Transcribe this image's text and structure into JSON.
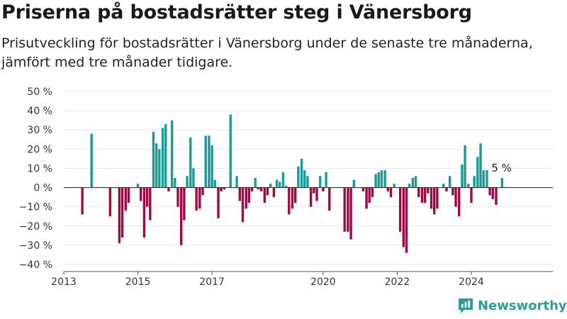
{
  "title": "Priserna på bostadsrätter steg i Vänersborg",
  "subtitle": "Prisutveckling för bostadsrätter i Vänersborg under de senaste tre månaderna, jämfört med tre månader tidigare.",
  "brand": {
    "name": "Newsworthy",
    "icon": "newsworthy-logo-icon"
  },
  "colors": {
    "positive": "#1a9c96",
    "negative": "#9e0a46",
    "grid": "#e6e6e6",
    "zero_line": "#333333",
    "text": "#333333"
  },
  "chart_data": {
    "type": "bar",
    "y_unit": "%",
    "ylim": [
      -40,
      50
    ],
    "yticks": [
      -40,
      -30,
      -20,
      -10,
      0,
      10,
      20,
      30,
      40,
      50
    ],
    "ytick_labels": [
      "−40 %",
      "−30 %",
      "−20 %",
      "−10 %",
      "0 %",
      "10 %",
      "20 %",
      "30 %",
      "40 %",
      "50 %"
    ],
    "xlim": [
      2013.0,
      2026.2
    ],
    "xticks": [
      2013,
      2015,
      2017,
      2020,
      2022,
      2024
    ],
    "xtick_labels": [
      "2013",
      "2015",
      "2017",
      "2020",
      "2022",
      "2024"
    ],
    "grid": true,
    "annotation": {
      "text": "5 %",
      "x": 2024.83,
      "y": 5
    },
    "points": [
      [
        2013.5,
        -14
      ],
      [
        2013.75,
        28
      ],
      [
        2014.25,
        -15
      ],
      [
        2014.5,
        -29
      ],
      [
        2014.58,
        -26
      ],
      [
        2014.67,
        -12
      ],
      [
        2014.75,
        -8
      ],
      [
        2015.0,
        2
      ],
      [
        2015.08,
        -7
      ],
      [
        2015.17,
        -26
      ],
      [
        2015.25,
        -10
      ],
      [
        2015.33,
        -17
      ],
      [
        2015.42,
        29
      ],
      [
        2015.5,
        23
      ],
      [
        2015.58,
        20
      ],
      [
        2015.67,
        31
      ],
      [
        2015.75,
        33
      ],
      [
        2015.83,
        -2
      ],
      [
        2015.92,
        35
      ],
      [
        2016.0,
        5
      ],
      [
        2016.08,
        -10
      ],
      [
        2016.17,
        -30
      ],
      [
        2016.25,
        -17
      ],
      [
        2016.33,
        6
      ],
      [
        2016.42,
        26
      ],
      [
        2016.5,
        10
      ],
      [
        2016.58,
        -12
      ],
      [
        2016.67,
        -11
      ],
      [
        2016.75,
        -4
      ],
      [
        2016.83,
        27
      ],
      [
        2016.92,
        27
      ],
      [
        2017.0,
        22
      ],
      [
        2017.08,
        4
      ],
      [
        2017.17,
        -16
      ],
      [
        2017.25,
        -2
      ],
      [
        2017.33,
        -1
      ],
      [
        2017.5,
        38
      ],
      [
        2017.58,
        0
      ],
      [
        2017.67,
        6
      ],
      [
        2017.75,
        -7
      ],
      [
        2017.83,
        -18
      ],
      [
        2017.92,
        -11
      ],
      [
        2018.0,
        -8
      ],
      [
        2018.08,
        -2
      ],
      [
        2018.17,
        5
      ],
      [
        2018.25,
        -1
      ],
      [
        2018.33,
        -2
      ],
      [
        2018.42,
        -8
      ],
      [
        2018.5,
        -4
      ],
      [
        2018.58,
        2
      ],
      [
        2018.67,
        -5
      ],
      [
        2018.75,
        4
      ],
      [
        2018.83,
        3
      ],
      [
        2018.92,
        8
      ],
      [
        2019.0,
        1
      ],
      [
        2019.08,
        -14
      ],
      [
        2019.17,
        -11
      ],
      [
        2019.25,
        -8
      ],
      [
        2019.33,
        11
      ],
      [
        2019.42,
        15
      ],
      [
        2019.5,
        9
      ],
      [
        2019.58,
        6
      ],
      [
        2019.67,
        -10
      ],
      [
        2019.75,
        -3
      ],
      [
        2019.83,
        -7
      ],
      [
        2019.92,
        6
      ],
      [
        2020.0,
        -2
      ],
      [
        2020.08,
        8
      ],
      [
        2020.17,
        -12
      ],
      [
        2020.58,
        -23
      ],
      [
        2020.67,
        -23
      ],
      [
        2020.75,
        -27
      ],
      [
        2020.83,
        4
      ],
      [
        2021.08,
        -2
      ],
      [
        2021.17,
        -11
      ],
      [
        2021.25,
        -8
      ],
      [
        2021.33,
        -5
      ],
      [
        2021.42,
        7
      ],
      [
        2021.5,
        8
      ],
      [
        2021.58,
        9
      ],
      [
        2021.67,
        9
      ],
      [
        2021.75,
        -2
      ],
      [
        2021.83,
        -5
      ],
      [
        2021.92,
        2
      ],
      [
        2022.08,
        -23
      ],
      [
        2022.17,
        -31
      ],
      [
        2022.25,
        -34
      ],
      [
        2022.33,
        2
      ],
      [
        2022.42,
        5
      ],
      [
        2022.5,
        6
      ],
      [
        2022.58,
        -5
      ],
      [
        2022.67,
        -8
      ],
      [
        2022.75,
        -8
      ],
      [
        2022.83,
        -3
      ],
      [
        2022.92,
        -11
      ],
      [
        2023.0,
        -14
      ],
      [
        2023.08,
        -11
      ],
      [
        2023.25,
        2
      ],
      [
        2023.33,
        -2
      ],
      [
        2023.42,
        6
      ],
      [
        2023.5,
        -4
      ],
      [
        2023.58,
        -10
      ],
      [
        2023.67,
        -15
      ],
      [
        2023.75,
        12
      ],
      [
        2023.83,
        22
      ],
      [
        2023.92,
        2
      ],
      [
        2024.0,
        -8
      ],
      [
        2024.08,
        6
      ],
      [
        2024.17,
        16
      ],
      [
        2024.25,
        23
      ],
      [
        2024.33,
        9
      ],
      [
        2024.42,
        9
      ],
      [
        2024.5,
        -4
      ],
      [
        2024.58,
        -6
      ],
      [
        2024.67,
        -9
      ],
      [
        2024.83,
        5
      ]
    ]
  }
}
